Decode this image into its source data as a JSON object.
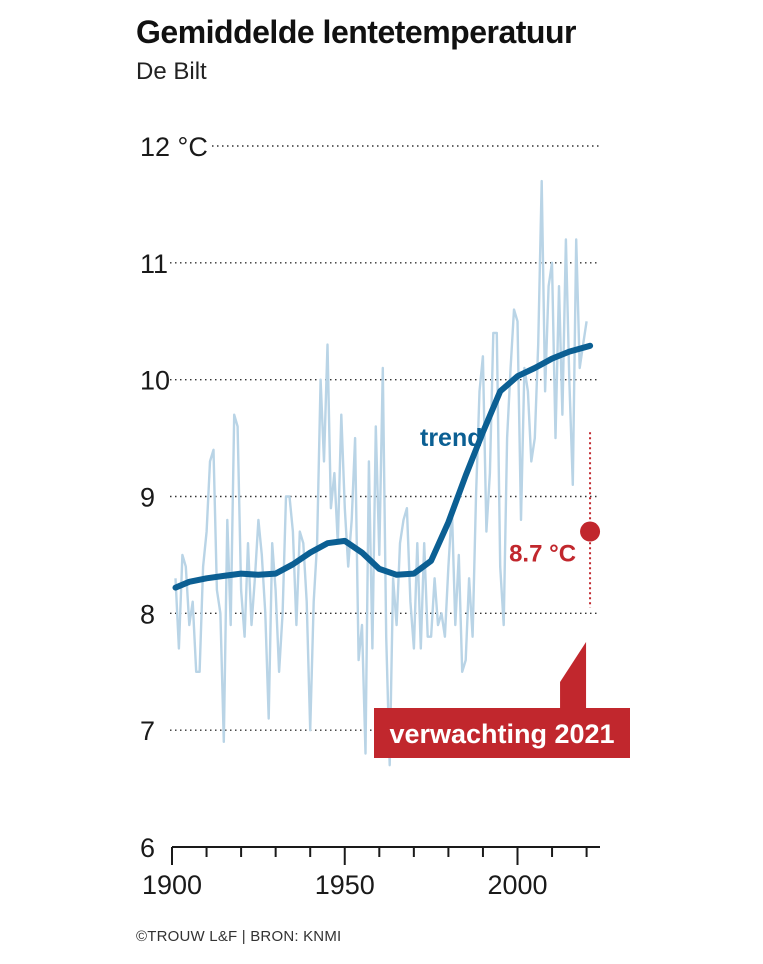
{
  "header": {
    "title": "Gemiddelde lentetemperatuur",
    "subtitle": "De Bilt"
  },
  "footer": {
    "source": "©TROUW L&F | BRON: KNMI"
  },
  "colors": {
    "annual": "#b9d4e6",
    "trend": "#0b5f93",
    "forecast": "#c1272d",
    "grid": "#333333"
  },
  "chart_data": {
    "type": "line",
    "title": "Gemiddelde lentetemperatuur",
    "subtitle": "De Bilt",
    "xlim": [
      1900,
      2025
    ],
    "ylim": [
      6,
      12
    ],
    "y_ticks": [
      {
        "value": 12,
        "label": "12 °C"
      },
      {
        "value": 11,
        "label": "11"
      },
      {
        "value": 10,
        "label": "10"
      },
      {
        "value": 9,
        "label": "9"
      },
      {
        "value": 8,
        "label": "8"
      },
      {
        "value": 7,
        "label": "7"
      },
      {
        "value": 6,
        "label": "6"
      }
    ],
    "x_ticks": [
      {
        "value": 1900,
        "label": "1900"
      },
      {
        "value": 1950,
        "label": "1950"
      },
      {
        "value": 2000,
        "label": "2000"
      }
    ],
    "grid": "dotted-horizontal",
    "series": [
      {
        "role": "annual",
        "x": [
          1901,
          1902,
          1903,
          1904,
          1905,
          1906,
          1907,
          1908,
          1909,
          1910,
          1911,
          1912,
          1913,
          1914,
          1915,
          1916,
          1917,
          1918,
          1919,
          1920,
          1921,
          1922,
          1923,
          1924,
          1925,
          1926,
          1927,
          1928,
          1929,
          1930,
          1931,
          1932,
          1933,
          1934,
          1935,
          1936,
          1937,
          1938,
          1939,
          1940,
          1941,
          1942,
          1943,
          1944,
          1945,
          1946,
          1947,
          1948,
          1949,
          1950,
          1951,
          1952,
          1953,
          1954,
          1955,
          1956,
          1957,
          1958,
          1959,
          1960,
          1961,
          1962,
          1963,
          1964,
          1965,
          1966,
          1967,
          1968,
          1969,
          1970,
          1971,
          1972,
          1973,
          1974,
          1975,
          1976,
          1977,
          1978,
          1979,
          1980,
          1981,
          1982,
          1983,
          1984,
          1985,
          1986,
          1987,
          1988,
          1989,
          1990,
          1991,
          1992,
          1993,
          1994,
          1995,
          1996,
          1997,
          1998,
          1999,
          2000,
          2001,
          2002,
          2003,
          2004,
          2005,
          2006,
          2007,
          2008,
          2009,
          2010,
          2011,
          2012,
          2013,
          2014,
          2015,
          2016,
          2017,
          2018,
          2019,
          2020
        ],
        "values": [
          8.3,
          7.7,
          8.5,
          8.4,
          7.9,
          8.1,
          7.5,
          7.5,
          8.4,
          8.7,
          9.3,
          9.4,
          8.2,
          8.0,
          6.9,
          8.8,
          7.9,
          9.7,
          9.6,
          8.2,
          7.8,
          8.6,
          7.9,
          8.3,
          8.8,
          8.5,
          8.0,
          7.1,
          8.6,
          8.2,
          7.5,
          8.0,
          9.0,
          9.0,
          8.7,
          7.9,
          8.7,
          8.6,
          8.1,
          7.0,
          8.1,
          8.6,
          10.0,
          9.3,
          10.3,
          8.9,
          9.2,
          8.6,
          9.7,
          8.9,
          8.4,
          8.8,
          9.5,
          7.6,
          7.9,
          6.8,
          9.3,
          7.7,
          9.6,
          8.5,
          10.1,
          7.8,
          6.7,
          8.3,
          7.9,
          8.6,
          8.8,
          8.9,
          8.1,
          7.7,
          8.6,
          7.7,
          8.6,
          7.8,
          7.8,
          8.3,
          7.9,
          8.0,
          7.8,
          8.4,
          8.9,
          7.9,
          8.5,
          7.5,
          7.6,
          8.3,
          7.8,
          9.0,
          9.9,
          10.2,
          8.7,
          9.2,
          10.4,
          10.4,
          8.4,
          7.9,
          9.5,
          10.1,
          10.6,
          10.5,
          8.8,
          10.1,
          9.9,
          9.3,
          9.5,
          10.3,
          11.7,
          9.9,
          10.8,
          11.0,
          9.5,
          10.8,
          9.7,
          11.2,
          10.0,
          9.1,
          11.2,
          10.1,
          10.3,
          10.5
        ]
      },
      {
        "role": "trend",
        "label": "trend",
        "x": [
          1901,
          1905,
          1910,
          1915,
          1920,
          1925,
          1930,
          1935,
          1940,
          1945,
          1950,
          1955,
          1960,
          1965,
          1970,
          1975,
          1980,
          1985,
          1990,
          1995,
          2000,
          2005,
          2010,
          2015,
          2021
        ],
        "values": [
          8.22,
          8.27,
          8.3,
          8.32,
          8.34,
          8.33,
          8.34,
          8.42,
          8.52,
          8.6,
          8.62,
          8.52,
          8.38,
          8.33,
          8.34,
          8.45,
          8.78,
          9.18,
          9.55,
          9.9,
          10.03,
          10.1,
          10.18,
          10.24,
          10.29
        ]
      }
    ],
    "forecast": {
      "year": 2021,
      "value": 8.7,
      "value_label": "8.7 °C",
      "range": [
        8.05,
        9.55
      ],
      "callout": "verwachting 2021"
    }
  }
}
